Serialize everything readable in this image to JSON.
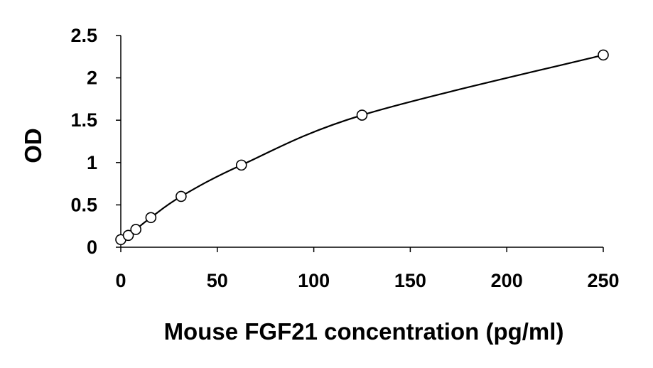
{
  "chart_data": {
    "type": "scatter",
    "title": "",
    "xlabel": "Mouse FGF21 concentration (pg/ml)",
    "ylabel": "OD",
    "xlim": [
      0,
      250
    ],
    "ylim": [
      0,
      2.5
    ],
    "x_ticks": [
      0,
      50,
      100,
      150,
      200,
      250
    ],
    "y_ticks": [
      0,
      0.5,
      1,
      1.5,
      2,
      2.5
    ],
    "x_tick_labels": [
      "0",
      "50",
      "100",
      "150",
      "200",
      "250"
    ],
    "y_tick_labels": [
      "0",
      "0.5",
      "1",
      "1.5",
      "2",
      "2.5"
    ],
    "grid": false,
    "legend": "none",
    "trendline": "smooth",
    "series": [
      {
        "marker": "open-circle",
        "x": [
          0,
          3.9,
          7.8,
          15.6,
          31.25,
          62.5,
          125,
          250
        ],
        "y": [
          0.09,
          0.14,
          0.21,
          0.35,
          0.6,
          0.97,
          1.56,
          2.27
        ]
      }
    ]
  }
}
